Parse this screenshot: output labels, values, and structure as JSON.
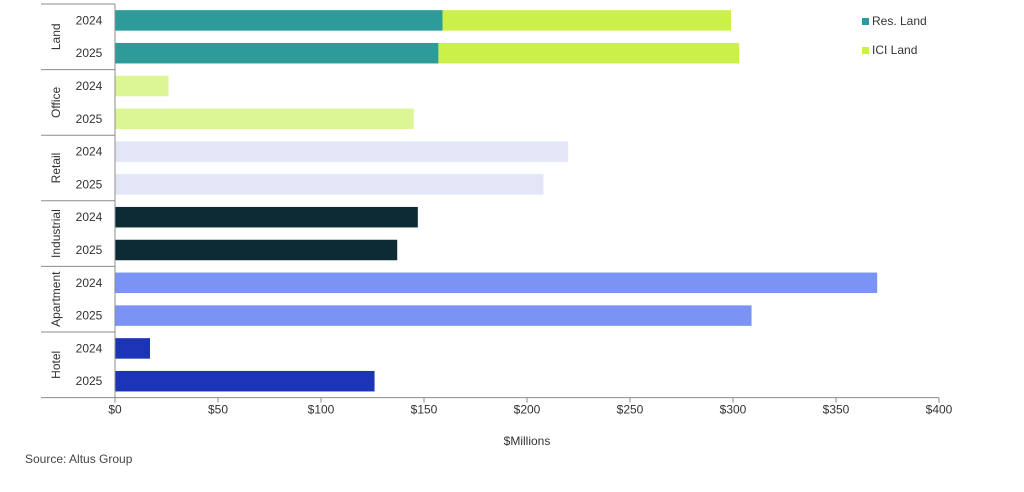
{
  "chart_data": {
    "type": "bar",
    "orientation": "horizontal",
    "stacked": true,
    "xlabel": "$Millions",
    "xlim": [
      0,
      400
    ],
    "xticks": [
      0,
      50,
      100,
      150,
      200,
      250,
      300,
      350,
      400
    ],
    "xtick_labels": [
      "$0",
      "$50",
      "$100",
      "$150",
      "$200",
      "$250",
      "$300",
      "$350",
      "$400"
    ],
    "grid": false,
    "legend_position": "top-right",
    "groups": [
      {
        "name": "Land",
        "rows": [
          {
            "year": "2024",
            "segments": [
              {
                "series": "Res. Land",
                "value": 159
              },
              {
                "series": "ICI Land",
                "value": 140
              }
            ]
          },
          {
            "year": "2025",
            "segments": [
              {
                "series": "Res. Land",
                "value": 157
              },
              {
                "series": "ICI Land",
                "value": 146
              }
            ]
          }
        ]
      },
      {
        "name": "Office",
        "rows": [
          {
            "year": "2024",
            "segments": [
              {
                "series": "Office",
                "value": 26
              }
            ]
          },
          {
            "year": "2025",
            "segments": [
              {
                "series": "Office",
                "value": 145
              }
            ]
          }
        ]
      },
      {
        "name": "Retail",
        "rows": [
          {
            "year": "2024",
            "segments": [
              {
                "series": "Retail",
                "value": 220
              }
            ]
          },
          {
            "year": "2025",
            "segments": [
              {
                "series": "Retail",
                "value": 208
              }
            ]
          }
        ]
      },
      {
        "name": "Industrial",
        "rows": [
          {
            "year": "2024",
            "segments": [
              {
                "series": "Industrial",
                "value": 147
              }
            ]
          },
          {
            "year": "2025",
            "segments": [
              {
                "series": "Industrial",
                "value": 137
              }
            ]
          }
        ]
      },
      {
        "name": "Apartment",
        "rows": [
          {
            "year": "2024",
            "segments": [
              {
                "series": "Apartment",
                "value": 370
              }
            ]
          },
          {
            "year": "2025",
            "segments": [
              {
                "series": "Apartment",
                "value": 309
              }
            ]
          }
        ]
      },
      {
        "name": "Hotel",
        "rows": [
          {
            "year": "2024",
            "segments": [
              {
                "series": "Hotel",
                "value": 17
              }
            ]
          },
          {
            "year": "2025",
            "segments": [
              {
                "series": "Hotel",
                "value": 126
              }
            ]
          }
        ]
      }
    ],
    "colors": {
      "Res. Land": "#2e9b9b",
      "ICI Land": "#ccf04a",
      "Office": "#dcf595",
      "Retail": "#e3e6f6",
      "Industrial": "#0d2b34",
      "Apartment": "#7b93f2",
      "Hotel": "#1c34b8"
    },
    "legend": [
      "Res. Land",
      "ICI Land"
    ]
  },
  "source_note": "Source:  Altus Group"
}
